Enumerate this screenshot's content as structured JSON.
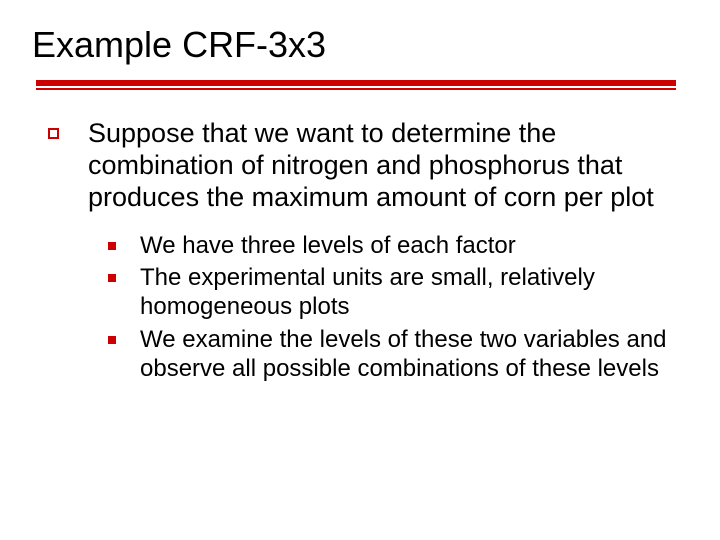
{
  "slide": {
    "title": "Example CRF-3x3",
    "rule_color": "#cc0000",
    "background_color": "#ffffff",
    "text_color": "#000000",
    "title_fontsize": 36,
    "body_fontsize_lvl1": 27,
    "body_fontsize_lvl2": 24,
    "bullets_lvl1": [
      {
        "text": "Suppose that we want to determine the combination of nitrogen and phosphorus that produces the maximum amount of corn per plot",
        "bullets_lvl2": [
          {
            "text": "We have three levels of each factor"
          },
          {
            "text": "The experimental units are small, relatively homogeneous plots"
          },
          {
            "text": "We examine the levels of these two variables and observe all possible combinations of these levels"
          }
        ]
      }
    ]
  }
}
